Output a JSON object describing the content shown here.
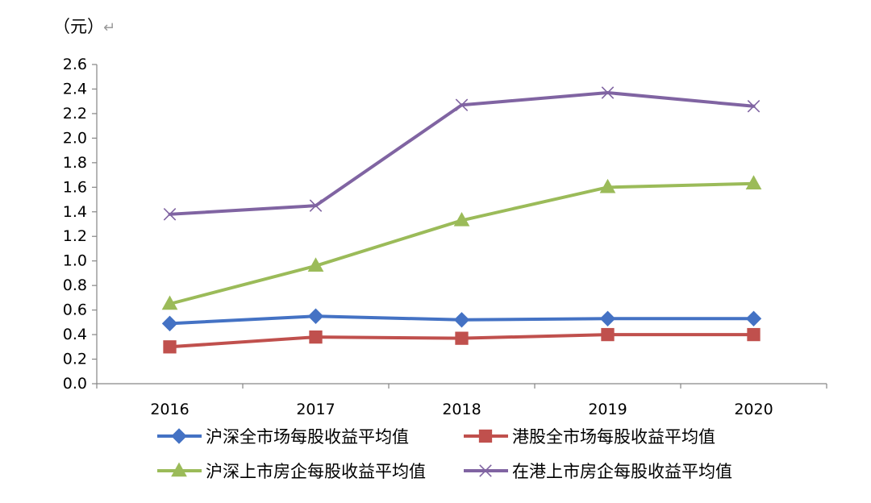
{
  "chart_data": {
    "type": "line",
    "title": "",
    "unit_label": "（元）",
    "paragraph_mark": "↵",
    "xlabel": "",
    "ylabel": "",
    "ylim": [
      0,
      2.6
    ],
    "ytick_step": 0.2,
    "ytick_labels": [
      "0.0",
      "0.2",
      "0.4",
      "0.6",
      "0.8",
      "1.0",
      "1.2",
      "1.4",
      "1.6",
      "1.8",
      "2.0",
      "2.2",
      "2.4",
      "2.6"
    ],
    "categories": [
      "2016",
      "2017",
      "2018",
      "2019",
      "2020"
    ],
    "grid": false,
    "legend_position": "bottom",
    "series": [
      {
        "name": "沪深全市场每股收益平均值",
        "values": [
          0.49,
          0.55,
          0.52,
          0.53,
          0.53
        ],
        "color": "#4472C4",
        "marker": "diamond"
      },
      {
        "name": "港股全市场每股收益平均值",
        "values": [
          0.3,
          0.38,
          0.37,
          0.4,
          0.4
        ],
        "color": "#C0504D",
        "marker": "square"
      },
      {
        "name": "沪深上市房企每股收益平均值",
        "values": [
          0.65,
          0.96,
          1.33,
          1.6,
          1.63
        ],
        "color": "#9BBB59",
        "marker": "triangle"
      },
      {
        "name": "在港上市房企每股收益平均值",
        "values": [
          1.38,
          1.45,
          2.27,
          2.37,
          2.26
        ],
        "color": "#8064A2",
        "marker": "x"
      }
    ]
  }
}
